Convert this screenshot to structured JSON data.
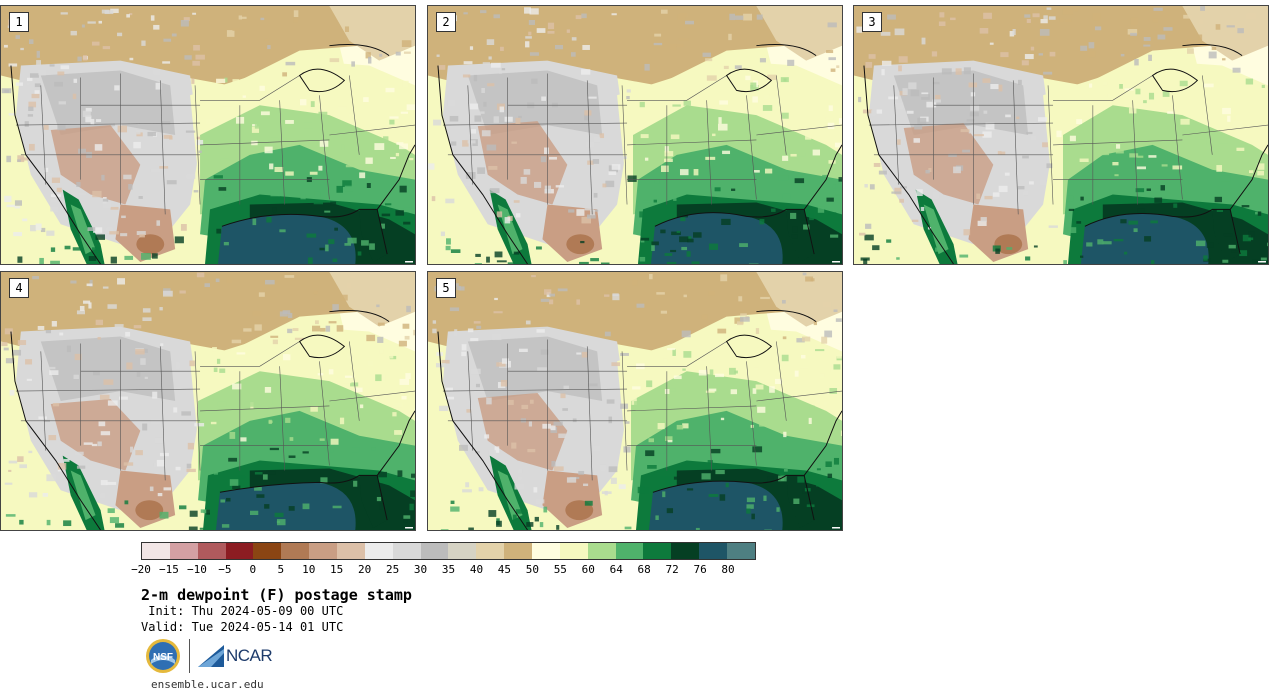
{
  "panels": [
    {
      "id": "1",
      "variant": 0
    },
    {
      "id": "2",
      "variant": 1
    },
    {
      "id": "3",
      "variant": 2
    },
    {
      "id": "4",
      "variant": 3
    },
    {
      "id": "5",
      "variant": 4
    }
  ],
  "colorbar": {
    "colors": [
      "#f2e6e6",
      "#d4a0a3",
      "#b05a5d",
      "#8c1c22",
      "#8b4513",
      "#b07a55",
      "#c99e84",
      "#dcc0a8",
      "#ececec",
      "#d9d9d9",
      "#bcbcbc",
      "#d6d3c4",
      "#e3d2aa",
      "#cfb27b",
      "#fffde0",
      "#f6f9c0",
      "#a9dc8e",
      "#4fb26b",
      "#0d7a3c",
      "#053f23",
      "#1e5566",
      "#4e7f82"
    ],
    "ticks": [
      "−20",
      "−15",
      "−10",
      "−5",
      "0",
      "5",
      "10",
      "15",
      "20",
      "25",
      "30",
      "35",
      "40",
      "45",
      "50",
      "55",
      "60",
      "64",
      "68",
      "72",
      "76",
      "80"
    ]
  },
  "title": "2-m dewpoint (F) postage stamp",
  "init": " Init: Thu 2024-05-09 00 UTC",
  "valid": "Valid: Tue 2024-05-14 01 UTC",
  "logos": {
    "nsf": "NSF",
    "ncar": "NCAR"
  },
  "footer_url": "ensemble.ucar.edu"
}
